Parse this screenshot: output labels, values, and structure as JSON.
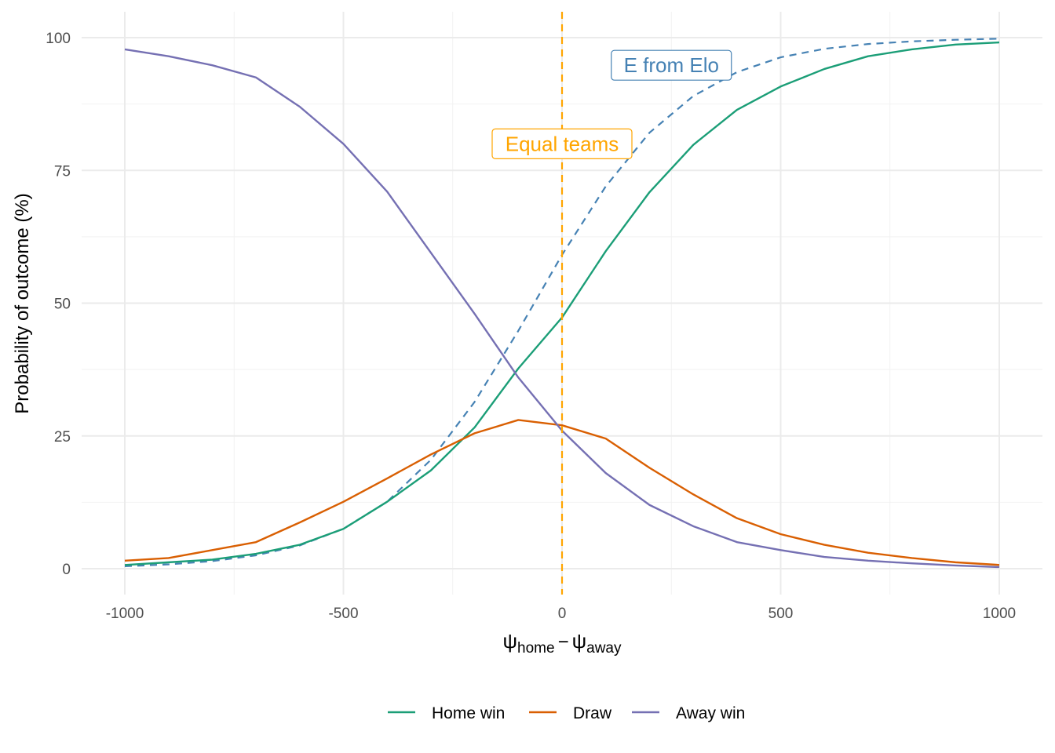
{
  "chart_data": {
    "type": "line",
    "title": "",
    "xlabel": {
      "main1": "ψ",
      "sub1": "home",
      "minus": "−",
      "main2": "ψ",
      "sub2": "away"
    },
    "ylabel": "Probability of outcome (%)",
    "xlim": [
      -1000,
      1000
    ],
    "ylim": [
      0,
      100
    ],
    "x_ticks": [
      -1000,
      -500,
      0,
      500,
      1000
    ],
    "x_tick_labels": [
      "-1000",
      "-500",
      "0",
      "500",
      "1000"
    ],
    "y_ticks": [
      0,
      25,
      50,
      75,
      100
    ],
    "y_tick_labels": [
      "0",
      "25",
      "50",
      "75",
      "100"
    ],
    "grid": true,
    "legend_position": "bottom",
    "x": [
      -1000,
      -900,
      -800,
      -700,
      -600,
      -500,
      -400,
      -300,
      -200,
      -100,
      0,
      100,
      200,
      300,
      400,
      500,
      600,
      700,
      800,
      900,
      1000
    ],
    "series": [
      {
        "name": "Home win",
        "color": "#1b9e77",
        "values": [
          0.7,
          1.2,
          1.7,
          2.8,
          4.5,
          7.5,
          12.6,
          18.5,
          26.6,
          37.7,
          47.3,
          59.8,
          70.9,
          79.8,
          86.4,
          90.8,
          94.1,
          96.5,
          97.8,
          98.7,
          99.1
        ]
      },
      {
        "name": "Draw",
        "color": "#d95f02",
        "values": [
          1.5,
          2.0,
          3.5,
          5.0,
          8.7,
          12.6,
          17.0,
          21.5,
          25.5,
          28.0,
          27.0,
          24.5,
          19.0,
          14.0,
          9.5,
          6.5,
          4.5,
          3.0,
          2.0,
          1.2,
          0.7
        ]
      },
      {
        "name": "Away win",
        "color": "#7570b3",
        "values": [
          97.8,
          96.5,
          94.8,
          92.5,
          87.0,
          80.0,
          71.0,
          59.5,
          48.0,
          36.0,
          26.0,
          18.0,
          12.0,
          8.0,
          5.0,
          3.5,
          2.2,
          1.5,
          1.0,
          0.6,
          0.3
        ]
      }
    ],
    "reference_curve": {
      "label": "E from Elo",
      "color": "#4682b4",
      "dashed": true,
      "values": [
        0.45,
        0.81,
        1.42,
        2.51,
        4.37,
        7.52,
        12.6,
        20.5,
        31.4,
        44.8,
        59.1,
        72.0,
        82.1,
        89.0,
        93.5,
        96.3,
        97.9,
        98.8,
        99.3,
        99.6,
        99.8
      ],
      "label_at": [
        250,
        94.8
      ]
    },
    "vline": {
      "x": 0,
      "label": "Equal teams",
      "color": "#ffa500",
      "dashed": true,
      "label_at": [
        0,
        80
      ]
    }
  }
}
